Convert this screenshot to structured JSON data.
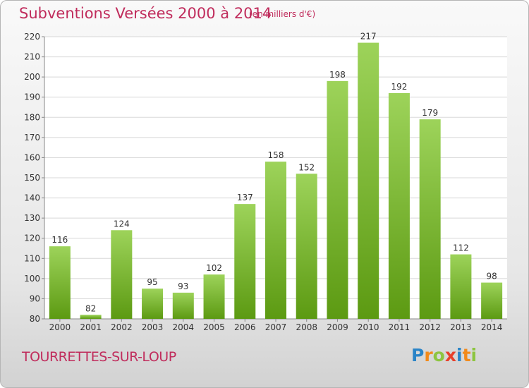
{
  "title": "Subventions Versées 2000 à 2014",
  "unit_note": "(en milliers d'€)",
  "commune": "TOURRETTES-SUR-LOUP",
  "brand": {
    "letters": [
      "P",
      "r",
      "o",
      "x",
      "i",
      "t",
      "i"
    ],
    "colors": [
      "#2a84c7",
      "#f28a1a",
      "#8dc540",
      "#e8402a",
      "#2a84c7",
      "#f28a1a",
      "#8dc540"
    ]
  },
  "colors": {
    "bar_top": "#9dd35a",
    "bar_bottom": "#5c9a12",
    "title": "#c02c5c"
  },
  "chart_data": {
    "type": "bar",
    "categories": [
      "2000",
      "2001",
      "2002",
      "2003",
      "2004",
      "2005",
      "2006",
      "2007",
      "2008",
      "2009",
      "2010",
      "2011",
      "2012",
      "2013",
      "2014"
    ],
    "values": [
      116,
      82,
      124,
      95,
      93,
      102,
      137,
      158,
      152,
      198,
      217,
      192,
      179,
      112,
      98
    ],
    "ylim": [
      80,
      220
    ],
    "yticks": [
      80,
      90,
      100,
      110,
      120,
      130,
      140,
      150,
      160,
      170,
      180,
      190,
      200,
      210,
      220
    ],
    "grid": true,
    "xlabel": "",
    "ylabel": ""
  }
}
